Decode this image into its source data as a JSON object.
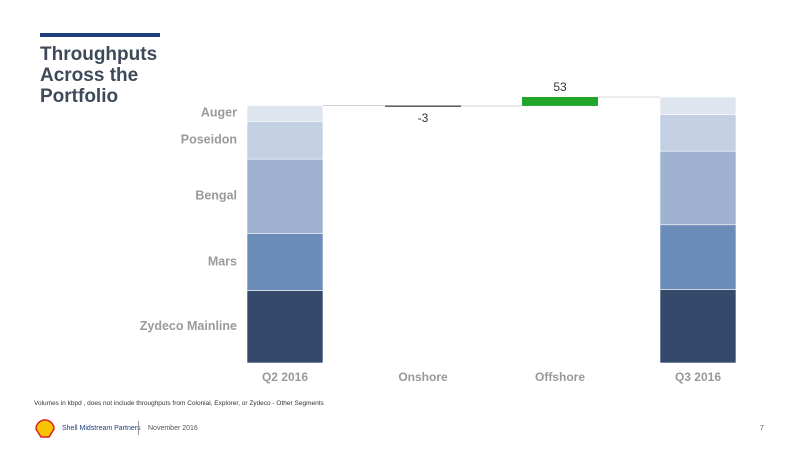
{
  "slide": {
    "title": "Throughputs Across the Portfolio",
    "footnote": "Volumes in kbpd , does not include throughputs from Colonial, Explorer, or Zydeco - Other Segments",
    "company": "Shell Midstream Partners",
    "date": "November 2016",
    "page": "7"
  },
  "chart_data": {
    "type": "waterfall",
    "categories": [
      "Q2 2016",
      "Onshore",
      "Offshore",
      "Q3 2016"
    ],
    "series": [
      {
        "name": "Zydeco Mainline",
        "color": "#354a6b",
        "values": [
          430,
          null,
          null,
          436
        ]
      },
      {
        "name": "Mars",
        "color": "#6b8bb8",
        "values": [
          336,
          null,
          null,
          383
        ]
      },
      {
        "name": "Bengal",
        "color": "#9eb1d0",
        "values": [
          442,
          null,
          null,
          436
        ]
      },
      {
        "name": "Poseidon",
        "color": "#c3cfe2",
        "values": [
          224,
          null,
          null,
          218
        ]
      },
      {
        "name": "Auger",
        "color": "#dfe5ef",
        "values": [
          94,
          null,
          null,
          103
        ]
      }
    ],
    "changes": [
      null,
      -3,
      53,
      null
    ],
    "increase_color": "#22a62a",
    "decrease_color": "#595959"
  }
}
